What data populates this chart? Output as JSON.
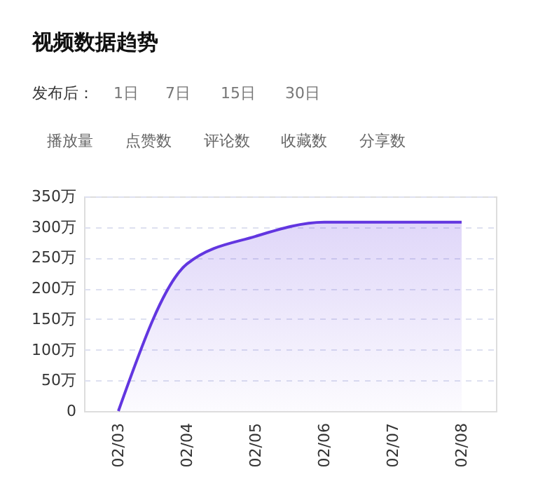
{
  "chart_data": {
    "type": "area",
    "title": "视频数据趋势",
    "annotations": [
      "发布后：",
      "1日",
      "7日",
      "15日",
      "30日",
      "播放量",
      "点赞数",
      "评论数",
      "收藏数",
      "分享数"
    ],
    "categories": [
      "02/03",
      "02/04",
      "02/05",
      "02/06",
      "02/07",
      "02/08"
    ],
    "series": [
      {
        "color": "#6236e0",
        "values": [
          0,
          240,
          285,
          308,
          308,
          308
        ]
      }
    ],
    "ylim": [
      0,
      350
    ],
    "yticks": [
      0,
      {
        "value": 50,
        "label": "50万"
      },
      {
        "value": 100,
        "label": "100万"
      },
      {
        "value": 150,
        "label": "150万"
      },
      {
        "value": 200,
        "label": "200万"
      },
      {
        "value": 250,
        "label": "250万"
      },
      {
        "value": 300,
        "label": "300万"
      },
      {
        "value": 350,
        "label": "350万"
      }
    ],
    "grid": "y"
  }
}
